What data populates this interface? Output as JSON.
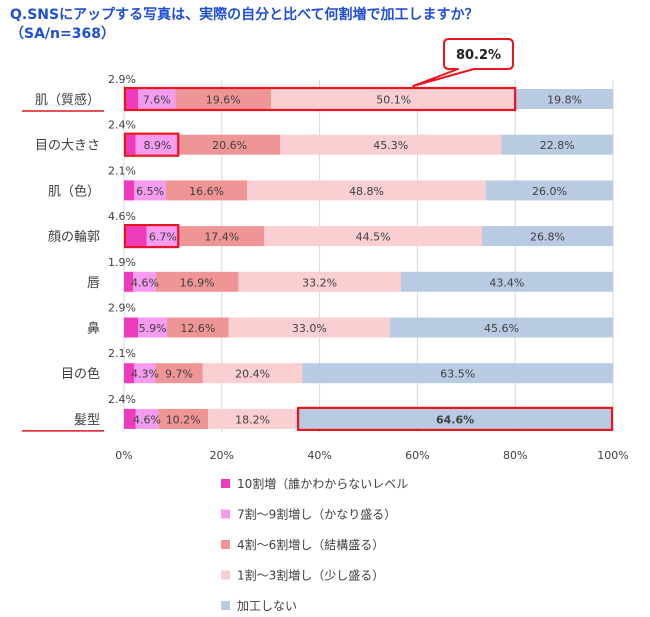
{
  "title_line1": "Q.SNSにアップする写真は、実際の自分と比べて何割増で加工しますか？",
  "title_line2": "（SA/n=368）",
  "callout_label": "80.2%",
  "chart_data": {
    "type": "stacked-bar-horizontal",
    "categories": [
      "肌（質感）",
      "目の大きさ",
      "肌（色）",
      "顔の輪郭",
      "唇",
      "鼻",
      "目の色",
      "髪型"
    ],
    "series": [
      {
        "name": "10割増（誰かわからないレベル",
        "color": "#ee3bbb",
        "values": [
          2.9,
          2.4,
          2.1,
          4.6,
          1.9,
          2.9,
          2.1,
          2.4
        ],
        "labels": [
          "2.9%",
          "2.4%",
          "2.1%",
          "4.6%",
          "1.9%",
          "2.9%",
          "2.1%",
          "2.4%"
        ]
      },
      {
        "name": "7割～9割増し（かなり盛る）",
        "color": "#f59bf0",
        "values": [
          7.6,
          8.9,
          6.5,
          6.7,
          4.6,
          5.9,
          4.3,
          4.6
        ],
        "labels": [
          "7.6%",
          "8.9%",
          "6.5%",
          "6.7%",
          "4.6%",
          "5.9%",
          "4.3%",
          "4.6%"
        ]
      },
      {
        "name": "4割～6割増し（結構盛る）",
        "color": "#ef9596",
        "values": [
          19.6,
          20.6,
          16.6,
          17.4,
          16.9,
          12.6,
          9.7,
          10.2
        ],
        "labels": [
          "19.6%",
          "20.6%",
          "16.6%",
          "17.4%",
          "16.9%",
          "12.6%",
          "9.7%",
          "10.2%"
        ]
      },
      {
        "name": "1割～3割増し（少し盛る）",
        "color": "#f9cfd1",
        "values": [
          50.1,
          45.3,
          48.8,
          44.5,
          33.2,
          33.0,
          20.4,
          18.2
        ],
        "labels": [
          "50.1%",
          "45.3%",
          "48.8%",
          "44.5%",
          "33.2%",
          "33.0%",
          "20.4%",
          "18.2%"
        ]
      },
      {
        "name": "加工しない",
        "color": "#b9cbe2",
        "values": [
          19.8,
          22.8,
          26.0,
          26.8,
          43.4,
          45.6,
          63.5,
          64.6
        ],
        "labels": [
          "19.8%",
          "22.8%",
          "26.0%",
          "26.8%",
          "43.4%",
          "45.6%",
          "63.5%",
          "64.6%"
        ]
      }
    ],
    "x_ticks": [
      "0%",
      "20%",
      "40%",
      "60%",
      "80%",
      "100%"
    ],
    "xlim": [
      0,
      100
    ],
    "underlined_categories": [
      "肌（質感）",
      "髪型"
    ],
    "highlight_boxes": [
      {
        "category": "肌（質感）",
        "from": 0,
        "to": 80.2
      },
      {
        "category": "目の大きさ",
        "from": 0,
        "to": 11.3
      },
      {
        "category": "顔の輪郭",
        "from": 0,
        "to": 11.3
      },
      {
        "category": "髪型",
        "from": 35.4,
        "to": 100
      }
    ],
    "bold_labels": [
      {
        "category": "髪型",
        "series": "加工しない"
      }
    ],
    "grid": true,
    "legend_position": "bottom"
  }
}
